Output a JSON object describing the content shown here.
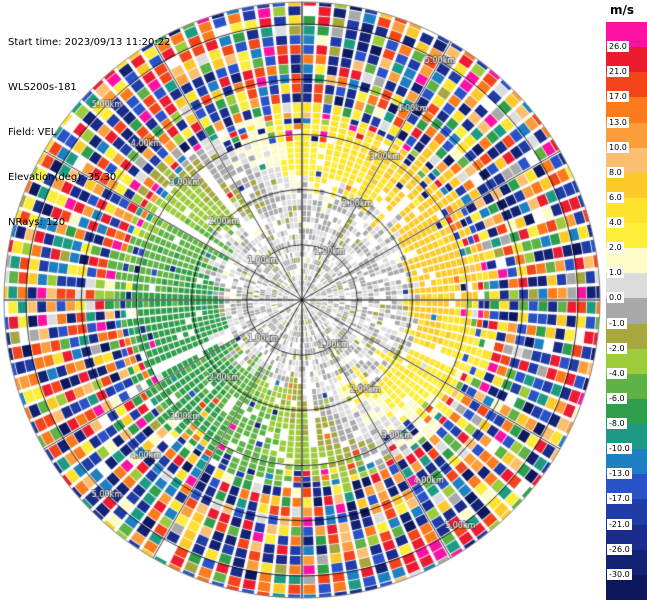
{
  "header": {
    "start_time": "Start time: 2023/09/13 11:20:22",
    "system": "WLS200s-181",
    "field": "Field: VEL",
    "elevation": "Elevation(deg): 35.30",
    "nrays": "NRays: 120"
  },
  "colorbar": {
    "title": "m/s",
    "ticks": [
      "26.0",
      "21.0",
      "17.0",
      "13.0",
      "10.0",
      "8.0",
      "6.0",
      "4.0",
      "2.0",
      "1.0",
      "0.0",
      "-1.0",
      "-2.0",
      "-4.0",
      "-6.0",
      "-8.0",
      "-10.0",
      "-13.0",
      "-17.0",
      "-21.0",
      "-26.0",
      "-30.0"
    ]
  },
  "chart_data": {
    "type": "heatmap",
    "plot_kind": "doppler-lidar-ppi-velocity",
    "title": "",
    "field": "VEL",
    "units": "m/s",
    "start_time": "2023/09/13 11:20:22",
    "instrument": "WLS200s-181",
    "elevation_deg": 35.3,
    "nrays": 120,
    "ray_width_deg": 3,
    "max_range_km": 5.4,
    "range_rings_km": [
      1,
      2,
      3,
      4,
      5
    ],
    "ring_labels": [
      "1.00km",
      "2.00km",
      "3.00km",
      "4.00km",
      "5.00km"
    ],
    "ring_label_angles_deg": [
      60,
      135,
      225,
      305
    ],
    "azimuth_grid_deg": 30,
    "levels_mps": [
      26,
      21,
      17,
      13,
      10,
      8,
      6,
      4,
      2,
      1,
      0,
      -1,
      -2,
      -4,
      -6,
      -8,
      -10,
      -13,
      -17,
      -21,
      -26,
      -30
    ],
    "level_colors": [
      "#fb12a3",
      "#ec1b30",
      "#f44419",
      "#fa7a1c",
      "#fb9d3a",
      "#fcbf6f",
      "#fdc928",
      "#fde32b",
      "#fdee3a",
      "#fdfbc8",
      "#dcdcdc",
      "#a9a9a9",
      "#a6a73f",
      "#9ccb3b",
      "#5fb246",
      "#2f9e4b",
      "#1d9b82",
      "#1e7fc2",
      "#2a52c8",
      "#203ca6",
      "#192c8c",
      "#132173",
      "#0d175c"
    ],
    "regions": {
      "clear_center_km": 0.15,
      "gray_core_km": 1.8,
      "signal_end_km": 3.45,
      "noise_to_km": 5.4,
      "dipole_max_mps": 7,
      "dipole_axis_deg": 15,
      "dipole_axis_twist_deg_per_km": 15,
      "noise_vel_range_mps": [
        -32,
        28
      ]
    },
    "grid_color": "#000000",
    "background_color": "#ffffff",
    "seed": 1337
  }
}
